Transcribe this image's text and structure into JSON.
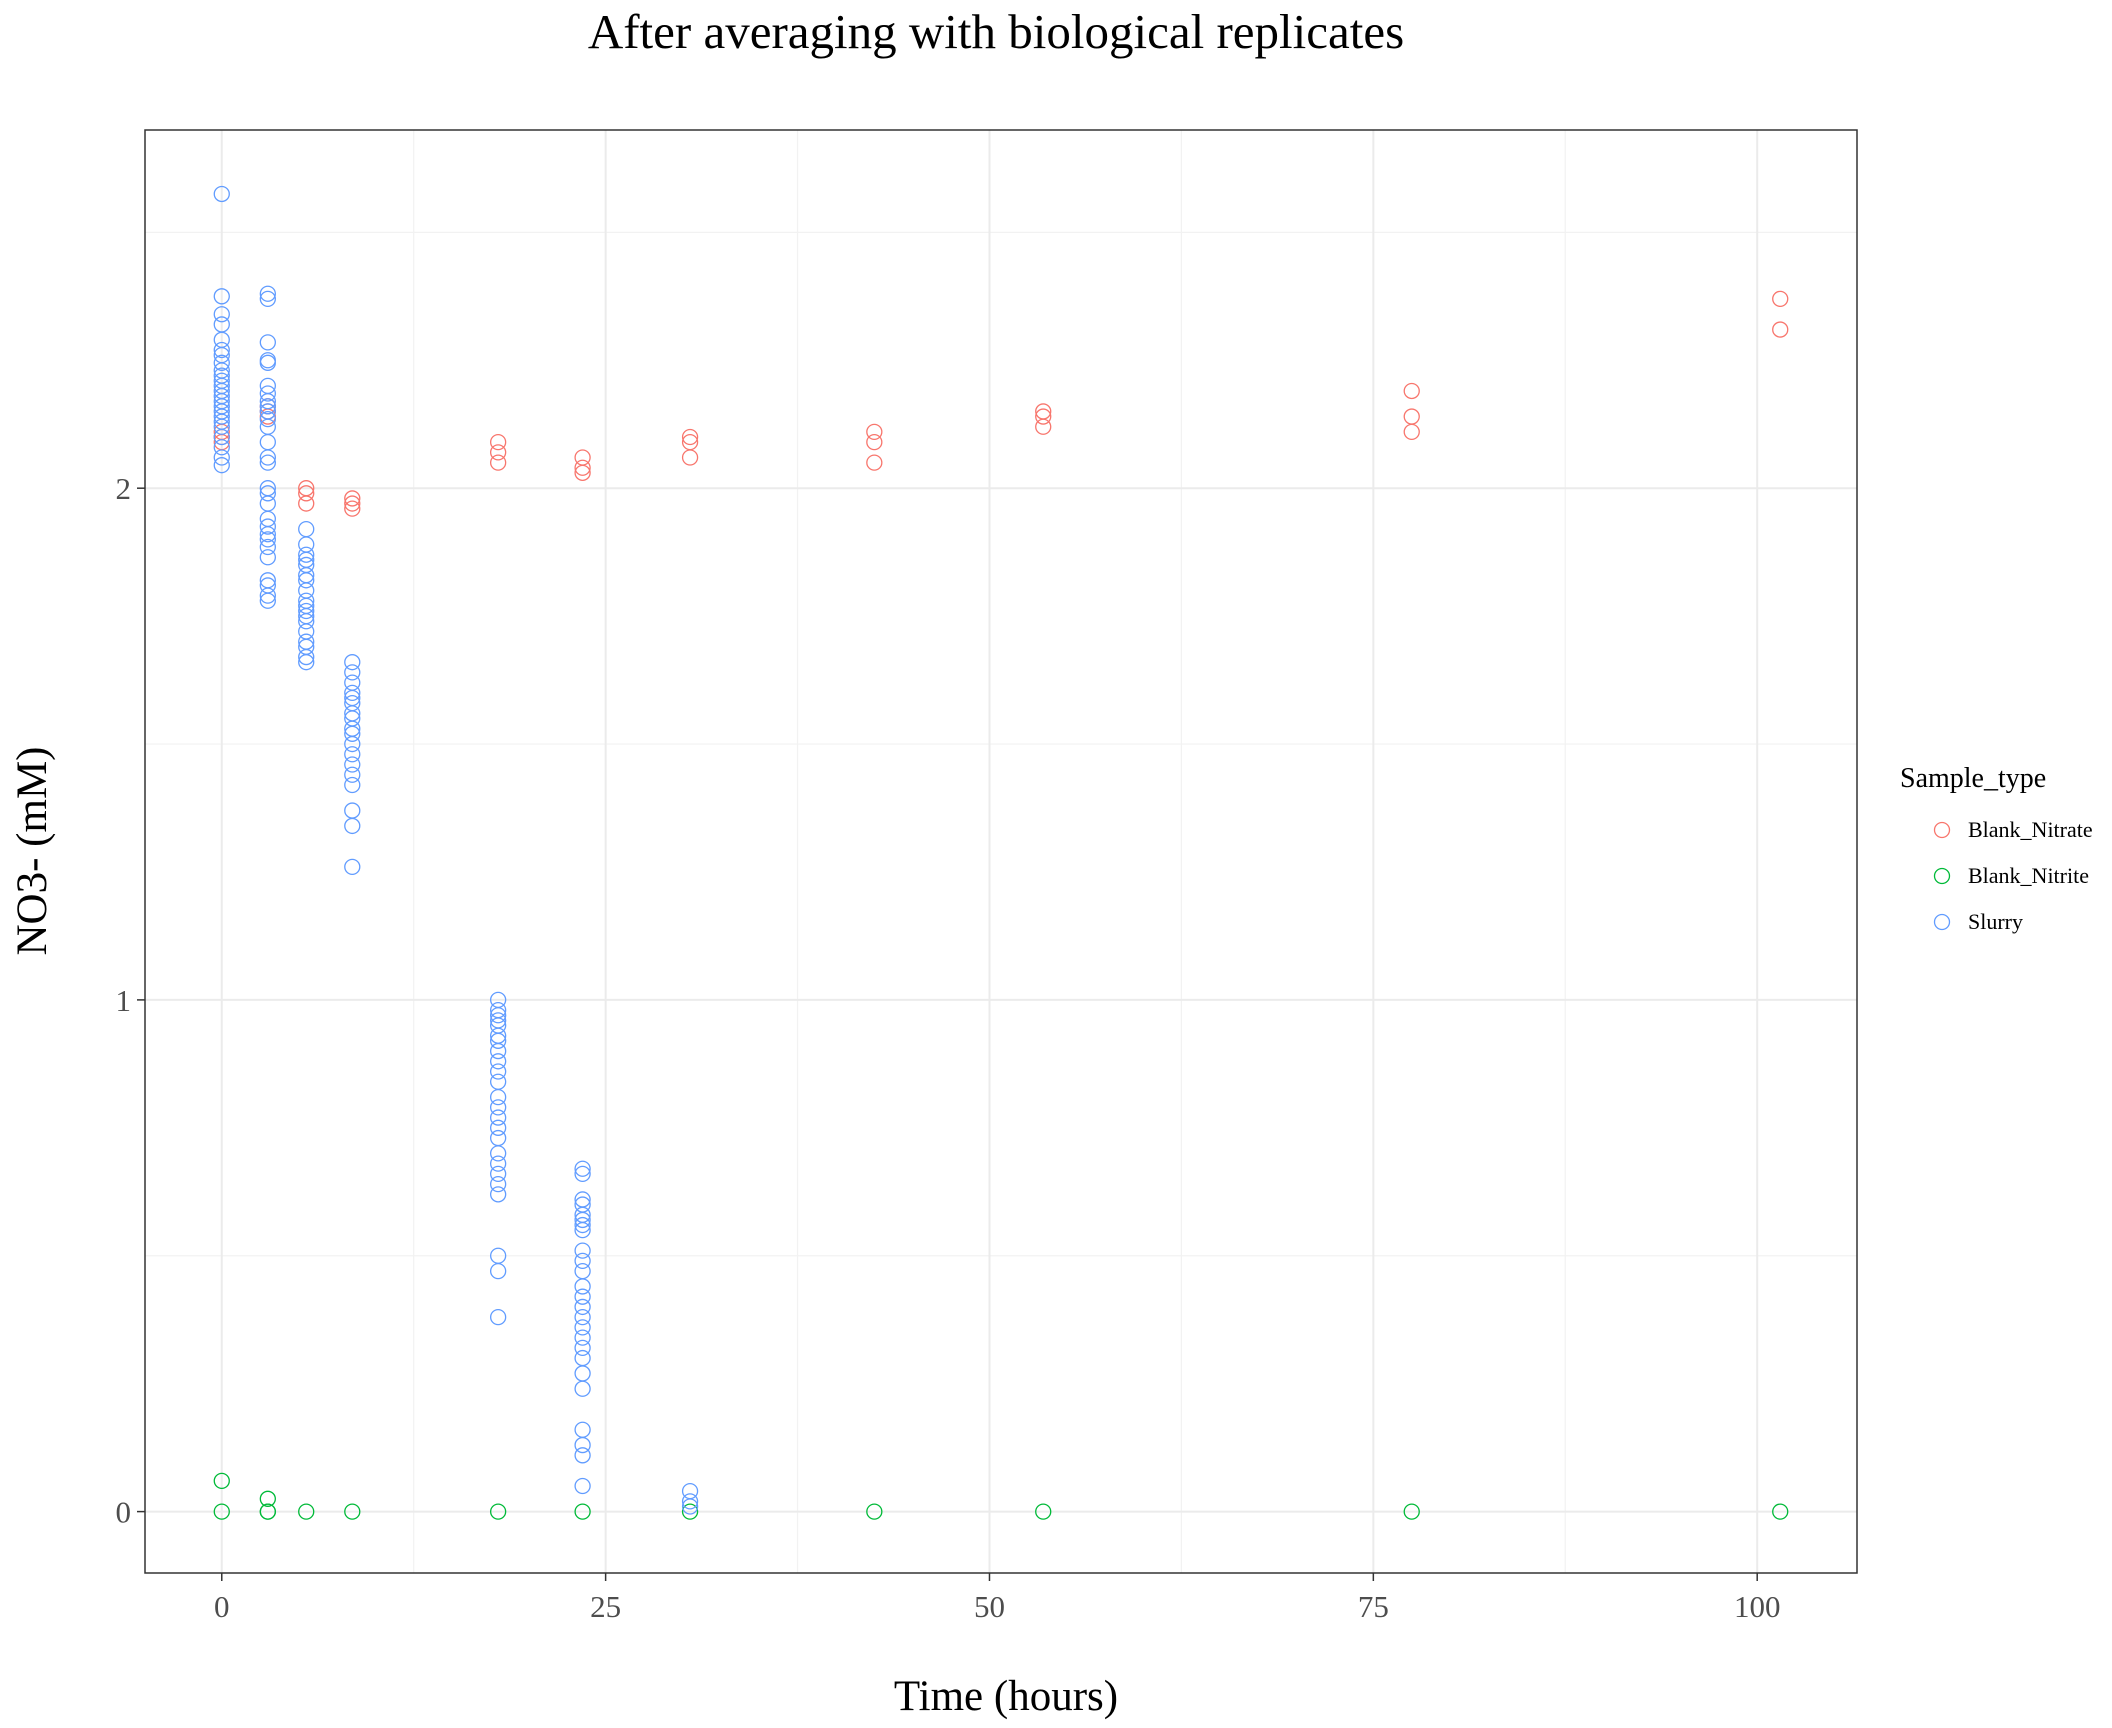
{
  "chart_data": {
    "type": "scatter",
    "title": "After averaging with biological replicates",
    "xlabel": "Time (hours)",
    "ylabel": "NO3- (mM)",
    "xlim": [
      -5,
      106.5
    ],
    "ylim": [
      -0.12,
      2.7
    ],
    "x_ticks": [
      0,
      25,
      50,
      75,
      100
    ],
    "y_ticks": [
      0,
      1,
      2
    ],
    "grid": true,
    "legend": {
      "title": "Sample_type",
      "position": "right",
      "entries": [
        {
          "name": "Blank_Nitrate",
          "color": "#F8766D"
        },
        {
          "name": "Blank_Nitrite",
          "color": "#00BA38"
        },
        {
          "name": "Slurry",
          "color": "#619CFF"
        }
      ]
    },
    "series": [
      {
        "name": "Blank_Nitrate",
        "color": "#F8766D",
        "points": [
          [
            0,
            2.09
          ],
          [
            0,
            2.1
          ],
          [
            0,
            2.11
          ],
          [
            3,
            2.14
          ],
          [
            3,
            2.15
          ],
          [
            3,
            2.16
          ],
          [
            5.5,
            1.97
          ],
          [
            5.5,
            1.99
          ],
          [
            5.5,
            2.0
          ],
          [
            8.5,
            1.96
          ],
          [
            8.5,
            1.97
          ],
          [
            8.5,
            1.98
          ],
          [
            18,
            2.05
          ],
          [
            18,
            2.07
          ],
          [
            18,
            2.09
          ],
          [
            23.5,
            2.03
          ],
          [
            23.5,
            2.04
          ],
          [
            23.5,
            2.06
          ],
          [
            30.5,
            2.06
          ],
          [
            30.5,
            2.09
          ],
          [
            30.5,
            2.1
          ],
          [
            42.5,
            2.05
          ],
          [
            42.5,
            2.09
          ],
          [
            42.5,
            2.11
          ],
          [
            53.5,
            2.12
          ],
          [
            53.5,
            2.14
          ],
          [
            53.5,
            2.15
          ],
          [
            77.5,
            2.11
          ],
          [
            77.5,
            2.14
          ],
          [
            77.5,
            2.19
          ],
          [
            101.5,
            2.31
          ],
          [
            101.5,
            2.37
          ]
        ]
      },
      {
        "name": "Blank_Nitrite",
        "color": "#00BA38",
        "points": [
          [
            0,
            0.06
          ],
          [
            0,
            0.0
          ],
          [
            3,
            0.025
          ],
          [
            3,
            0.0
          ],
          [
            3,
            0.0
          ],
          [
            5.5,
            0.0
          ],
          [
            8.5,
            0.0
          ],
          [
            18,
            0.0
          ],
          [
            23.5,
            0.0
          ],
          [
            30.5,
            0.0
          ],
          [
            42.5,
            0.0
          ],
          [
            53.5,
            0.0
          ],
          [
            77.5,
            0.0
          ],
          [
            101.5,
            0.0
          ]
        ]
      },
      {
        "name": "Slurry",
        "color": "#619CFF",
        "points": [
          [
            0,
            2.575
          ],
          [
            0,
            2.375
          ],
          [
            0,
            2.34
          ],
          [
            0,
            2.32
          ],
          [
            0,
            2.29
          ],
          [
            0,
            2.27
          ],
          [
            0,
            2.26
          ],
          [
            0,
            2.245
          ],
          [
            0,
            2.23
          ],
          [
            0,
            2.22
          ],
          [
            0,
            2.21
          ],
          [
            0,
            2.2
          ],
          [
            0,
            2.19
          ],
          [
            0,
            2.18
          ],
          [
            0,
            2.17
          ],
          [
            0,
            2.16
          ],
          [
            0,
            2.15
          ],
          [
            0,
            2.14
          ],
          [
            0,
            2.13
          ],
          [
            0,
            2.12
          ],
          [
            0,
            2.1
          ],
          [
            0,
            2.08
          ],
          [
            0,
            2.06
          ],
          [
            0,
            2.045
          ],
          [
            3,
            2.38
          ],
          [
            3,
            2.37
          ],
          [
            3,
            2.285
          ],
          [
            3,
            2.25
          ],
          [
            3,
            2.245
          ],
          [
            3,
            2.2
          ],
          [
            3,
            2.185
          ],
          [
            3,
            2.17
          ],
          [
            3,
            2.16
          ],
          [
            3,
            2.15
          ],
          [
            3,
            2.135
          ],
          [
            3,
            2.12
          ],
          [
            3,
            2.09
          ],
          [
            3,
            2.06
          ],
          [
            3,
            2.05
          ],
          [
            3,
            2.0
          ],
          [
            3,
            1.99
          ],
          [
            3,
            1.97
          ],
          [
            3,
            1.94
          ],
          [
            3,
            1.925
          ],
          [
            3,
            1.91
          ],
          [
            3,
            1.9
          ],
          [
            3,
            1.885
          ],
          [
            3,
            1.865
          ],
          [
            3,
            1.82
          ],
          [
            3,
            1.81
          ],
          [
            3,
            1.79
          ],
          [
            3,
            1.78
          ],
          [
            5.5,
            1.92
          ],
          [
            5.5,
            1.89
          ],
          [
            5.5,
            1.87
          ],
          [
            5.5,
            1.86
          ],
          [
            5.5,
            1.85
          ],
          [
            5.5,
            1.83
          ],
          [
            5.5,
            1.82
          ],
          [
            5.5,
            1.8
          ],
          [
            5.5,
            1.78
          ],
          [
            5.5,
            1.77
          ],
          [
            5.5,
            1.76
          ],
          [
            5.5,
            1.75
          ],
          [
            5.5,
            1.74
          ],
          [
            5.5,
            1.72
          ],
          [
            5.5,
            1.7
          ],
          [
            5.5,
            1.69
          ],
          [
            5.5,
            1.67
          ],
          [
            5.5,
            1.66
          ],
          [
            8.5,
            1.66
          ],
          [
            8.5,
            1.64
          ],
          [
            8.5,
            1.62
          ],
          [
            8.5,
            1.6
          ],
          [
            8.5,
            1.59
          ],
          [
            8.5,
            1.58
          ],
          [
            8.5,
            1.56
          ],
          [
            8.5,
            1.55
          ],
          [
            8.5,
            1.53
          ],
          [
            8.5,
            1.52
          ],
          [
            8.5,
            1.5
          ],
          [
            8.5,
            1.48
          ],
          [
            8.5,
            1.46
          ],
          [
            8.5,
            1.44
          ],
          [
            8.5,
            1.42
          ],
          [
            8.5,
            1.37
          ],
          [
            8.5,
            1.34
          ],
          [
            8.5,
            1.26
          ],
          [
            18,
            1.0
          ],
          [
            18,
            0.98
          ],
          [
            18,
            0.97
          ],
          [
            18,
            0.96
          ],
          [
            18,
            0.95
          ],
          [
            18,
            0.93
          ],
          [
            18,
            0.92
          ],
          [
            18,
            0.9
          ],
          [
            18,
            0.88
          ],
          [
            18,
            0.86
          ],
          [
            18,
            0.84
          ],
          [
            18,
            0.81
          ],
          [
            18,
            0.79
          ],
          [
            18,
            0.77
          ],
          [
            18,
            0.75
          ],
          [
            18,
            0.73
          ],
          [
            18,
            0.7
          ],
          [
            18,
            0.68
          ],
          [
            18,
            0.66
          ],
          [
            18,
            0.64
          ],
          [
            18,
            0.62
          ],
          [
            18,
            0.5
          ],
          [
            18,
            0.47
          ],
          [
            18,
            0.38
          ],
          [
            23.5,
            0.67
          ],
          [
            23.5,
            0.66
          ],
          [
            23.5,
            0.61
          ],
          [
            23.5,
            0.6
          ],
          [
            23.5,
            0.58
          ],
          [
            23.5,
            0.57
          ],
          [
            23.5,
            0.56
          ],
          [
            23.5,
            0.55
          ],
          [
            23.5,
            0.51
          ],
          [
            23.5,
            0.49
          ],
          [
            23.5,
            0.47
          ],
          [
            23.5,
            0.44
          ],
          [
            23.5,
            0.42
          ],
          [
            23.5,
            0.4
          ],
          [
            23.5,
            0.38
          ],
          [
            23.5,
            0.36
          ],
          [
            23.5,
            0.34
          ],
          [
            23.5,
            0.32
          ],
          [
            23.5,
            0.3
          ],
          [
            23.5,
            0.27
          ],
          [
            23.5,
            0.24
          ],
          [
            23.5,
            0.16
          ],
          [
            23.5,
            0.13
          ],
          [
            23.5,
            0.11
          ],
          [
            23.5,
            0.05
          ],
          [
            30.5,
            0.04
          ],
          [
            30.5,
            0.02
          ],
          [
            30.5,
            0.01
          ]
        ]
      }
    ]
  }
}
